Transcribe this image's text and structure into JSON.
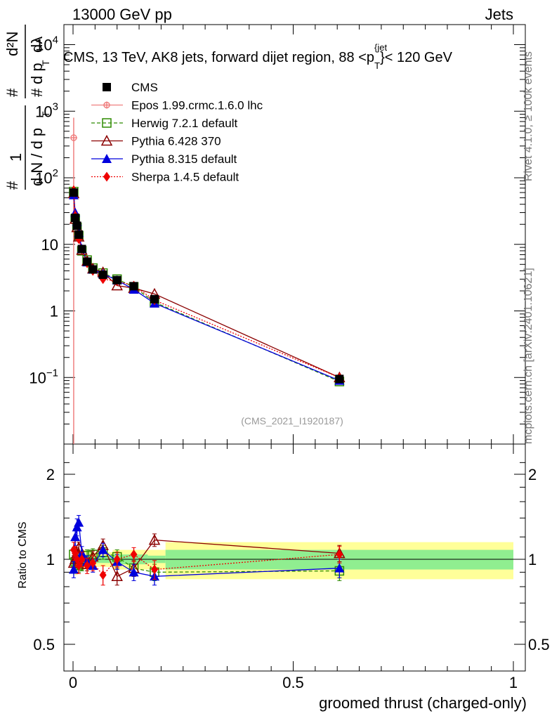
{
  "header": {
    "energy_label": "13000 GeV pp",
    "category_label": "Jets"
  },
  "side_labels": {
    "rivet": "Rivet 4.1.0, ≥ 100k events",
    "mcplots": "mcplots.cern.ch [arXiv:2401.10621]"
  },
  "chart_data": {
    "type": "scatter",
    "title": "CMS, 13 TeV, AK8 jets, forward dijet region, 88 <p_T^{jet}< 120 GeV",
    "title_parts": {
      "main": "CMS, 13 TeV, AK8 jets, forward dijet region, 88 <p",
      "sup": "{jet",
      "sub": "T",
      "tail": "}< 120 GeV"
    },
    "analysis_id": "(CMS_2021_I1920187)",
    "xlabel": "groomed thrust (charged-only)",
    "ylabel_top": "1/dN/dpT # d²N/dpT dλ",
    "ylabel_parts": {
      "one": "1",
      "hash": "#",
      "dN": "d N / d p",
      "T": "T",
      "d2N": "d²N",
      "dpTdl": "d p",
      "dl": "dλ"
    },
    "ylabel_ratio": "Ratio to CMS",
    "xlim": [
      0,
      1
    ],
    "ylim_top": [
      0.01,
      20000
    ],
    "ylim_ratio": [
      0.4,
      2.4
    ],
    "x_ticks": [
      {
        "v": 0,
        "label": "0"
      },
      {
        "v": 0.5,
        "label": "0.5"
      },
      {
        "v": 1,
        "label": "1"
      }
    ],
    "y_ticks_top": [
      {
        "v": 0.1,
        "base": "10",
        "exp": "−1"
      },
      {
        "v": 1,
        "base": "1",
        "exp": ""
      },
      {
        "v": 10,
        "base": "10",
        "exp": ""
      },
      {
        "v": 100,
        "base": "10",
        "exp": "2"
      },
      {
        "v": 1000,
        "base": "10",
        "exp": "3"
      },
      {
        "v": 10000,
        "base": "10",
        "exp": "4"
      }
    ],
    "y_ticks_ratio": [
      {
        "v": 0.5,
        "label": "0.5"
      },
      {
        "v": 1,
        "label": "1"
      },
      {
        "v": 2,
        "label": "2"
      }
    ],
    "x": [
      0.0015,
      0.005,
      0.009,
      0.015,
      0.027,
      0.042,
      0.065,
      0.095,
      0.138,
      0.185,
      0.605
    ],
    "cms_values": [
      60,
      25,
      19,
      14,
      8.5,
      5.5,
      4.2,
      3.5,
      2.9,
      2.35,
      1.5,
      0.095
    ],
    "cms_x": [
      0.0015,
      0.005,
      0.009,
      0.013,
      0.02,
      0.032,
      0.045,
      0.068,
      0.1,
      0.138,
      0.185,
      0.605
    ],
    "band_bins": [
      {
        "x0": 0.0,
        "x1": 0.01,
        "in": 0.05,
        "out": 0.12
      },
      {
        "x0": 0.01,
        "x1": 0.03,
        "in": 0.04,
        "out": 0.08
      },
      {
        "x0": 0.03,
        "x1": 0.09,
        "in": 0.03,
        "out": 0.06
      },
      {
        "x0": 0.09,
        "x1": 0.17,
        "in": 0.04,
        "out": 0.08
      },
      {
        "x0": 0.17,
        "x1": 0.21,
        "in": 0.03,
        "out": 0.08
      },
      {
        "x0": 0.21,
        "x1": 1.0,
        "in": 0.08,
        "out": 0.15
      }
    ],
    "series": [
      {
        "name": "CMS",
        "key": "cms",
        "color": "#000000",
        "marker": "square",
        "line": "none"
      },
      {
        "name": "Epos 1.99.crmc.1.6.0 lhc",
        "key": "epos",
        "color": "#f08080",
        "marker": "plus-circle",
        "line": "solid",
        "x": [
          0.0015
        ],
        "values": [
          400
        ],
        "err_lo": [
          399.99
        ],
        "err_hi": [
          400
        ],
        "ratio": []
      },
      {
        "name": "Herwig 7.2.1 default",
        "key": "herwig",
        "color": "#2e8b00",
        "marker": "open-square",
        "line": "dashed",
        "x": [
          0.0015,
          0.005,
          0.009,
          0.013,
          0.02,
          0.032,
          0.045,
          0.068,
          0.1,
          0.138,
          0.185,
          0.605
        ],
        "values": [
          62,
          24,
          18,
          13.5,
          8,
          5.8,
          4.4,
          3.7,
          3.0,
          2.3,
          1.35,
          0.087
        ],
        "ratio": [
          1.04,
          0.98,
          0.97,
          0.95,
          0.96,
          1.03,
          1.04,
          1.06,
          1.02,
          0.93,
          0.9,
          0.91
        ],
        "ratio_err": [
          0.06,
          0.05,
          0.05,
          0.05,
          0.05,
          0.05,
          0.05,
          0.06,
          0.06,
          0.06,
          0.06,
          0.07
        ]
      },
      {
        "name": "Pythia 6.428 370",
        "key": "pythia6",
        "color": "#8b0000",
        "marker": "open-triangle",
        "line": "solid",
        "x": [
          0.0015,
          0.005,
          0.009,
          0.013,
          0.02,
          0.032,
          0.045,
          0.068,
          0.1,
          0.138,
          0.185,
          0.605
        ],
        "values": [
          58,
          24,
          18,
          13,
          8.2,
          5.6,
          4.3,
          3.8,
          2.4,
          2.2,
          1.8,
          0.1
        ],
        "ratio": [
          0.97,
          1.0,
          1.05,
          1.1,
          1.0,
          0.96,
          1.02,
          1.12,
          0.87,
          0.93,
          1.17,
          1.05
        ],
        "ratio_err": [
          0.06,
          0.05,
          0.05,
          0.05,
          0.05,
          0.05,
          0.05,
          0.06,
          0.06,
          0.06,
          0.06,
          0.07
        ]
      },
      {
        "name": "Pythia 8.315 default",
        "key": "pythia8",
        "color": "#0000dd",
        "marker": "triangle",
        "line": "solid",
        "x": [
          0.0015,
          0.005,
          0.009,
          0.013,
          0.02,
          0.032,
          0.045,
          0.068,
          0.1,
          0.138,
          0.185,
          0.605
        ],
        "values": [
          55,
          30,
          22,
          15,
          8.6,
          5.4,
          4.2,
          3.6,
          2.9,
          2.1,
          1.3,
          0.09
        ],
        "ratio": [
          0.92,
          1.2,
          1.3,
          1.35,
          1.05,
          0.98,
          0.95,
          1.08,
          0.98,
          0.9,
          0.87,
          0.93
        ],
        "ratio_err": [
          0.06,
          0.08,
          0.09,
          0.08,
          0.06,
          0.05,
          0.05,
          0.06,
          0.06,
          0.06,
          0.06,
          0.07
        ]
      },
      {
        "name": "Sherpa 1.4.5 default",
        "key": "sherpa",
        "color": "#ee0000",
        "marker": "diamond",
        "line": "dotted",
        "x": [
          0.0015,
          0.005,
          0.009,
          0.013,
          0.02,
          0.032,
          0.045,
          0.068,
          0.1,
          0.138,
          0.185,
          0.605
        ],
        "values": [
          65,
          27,
          20,
          12,
          8.4,
          5.2,
          4.0,
          3.0,
          2.8,
          2.4,
          1.45,
          0.1
        ],
        "ratio": [
          1.08,
          1.05,
          1.0,
          0.95,
          1.0,
          0.95,
          0.97,
          0.88,
          1.0,
          1.04,
          0.92,
          1.04
        ],
        "ratio_err": [
          0.07,
          0.06,
          0.06,
          0.06,
          0.06,
          0.06,
          0.06,
          0.07,
          0.06,
          0.06,
          0.07,
          0.07
        ]
      }
    ]
  }
}
